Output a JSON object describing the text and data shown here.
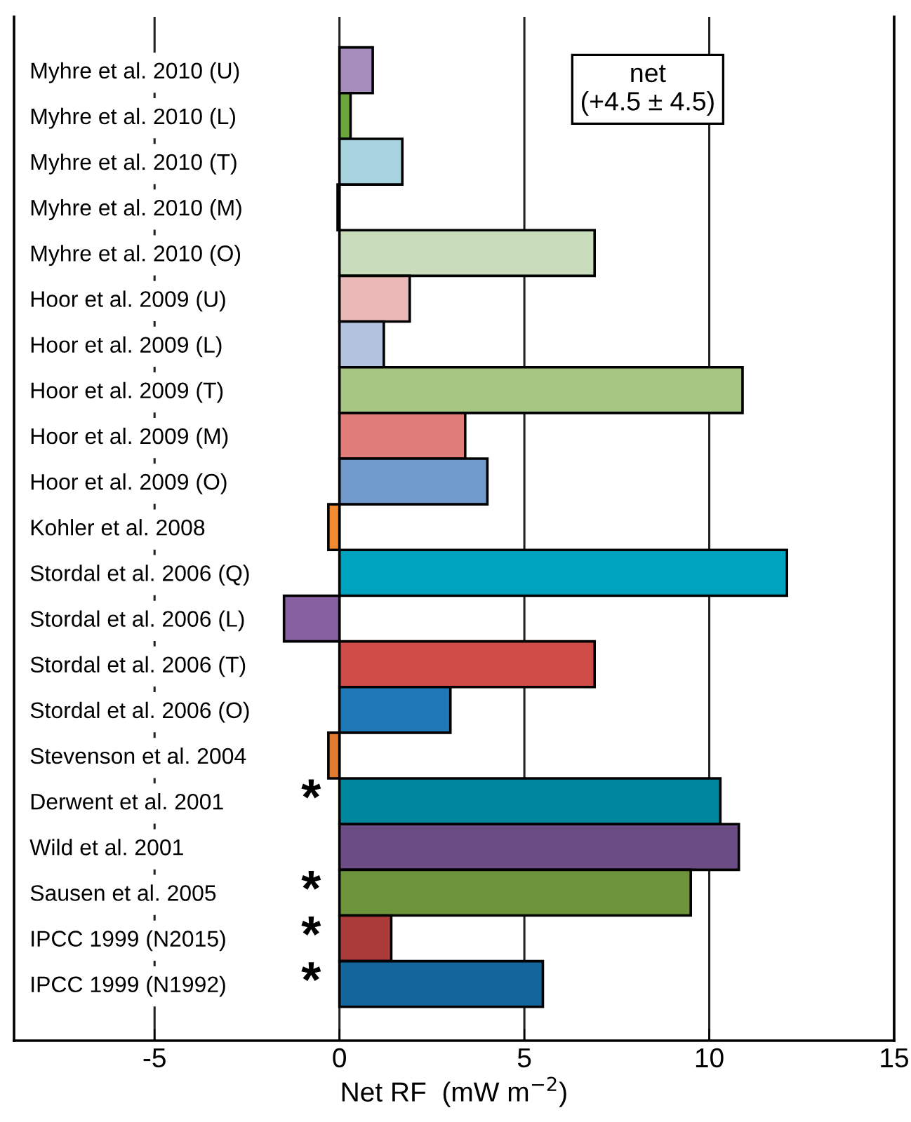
{
  "chart_data": {
    "type": "bar",
    "orientation": "horizontal",
    "categories": [
      "Myhre et al. 2010 (U)",
      "Myhre et al. 2010 (L)",
      "Myhre et al. 2010 (T)",
      "Myhre et al. 2010 (M)",
      "Myhre et al. 2010 (O)",
      "Hoor et al. 2009 (U)",
      "Hoor et al. 2009 (L)",
      "Hoor et al. 2009 (T)",
      "Hoor et al. 2009 (M)",
      "Hoor et al. 2009 (O)",
      "Kohler et al. 2008",
      "Stordal et al. 2006 (Q)",
      "Stordal et al. 2006 (L)",
      "Stordal et al. 2006 (T)",
      "Stordal et al. 2006 (O)",
      "Stevenson et al. 2004",
      "Derwent et al. 2001",
      "Wild et al. 2001",
      "Sausen et al. 2005",
      "IPCC 1999 (N2015)",
      "IPCC 1999 (N1992)"
    ],
    "values": [
      0.9,
      0.3,
      1.7,
      -0.05,
      6.9,
      1.9,
      1.2,
      10.9,
      3.4,
      4.0,
      -0.3,
      12.1,
      -1.5,
      6.9,
      3.0,
      -0.3,
      10.3,
      10.8,
      9.5,
      1.4,
      5.5
    ],
    "colors": [
      "#a58cbd",
      "#6aa63a",
      "#a8d4e0",
      "#cccccc",
      "#c9ddbd",
      "#eab8b6",
      "#b3c3df",
      "#a7c681",
      "#e07d7b",
      "#6f9acb",
      "#f28b32",
      "#00a3bf",
      "#8660a0",
      "#cf4b48",
      "#1f79b7",
      "#e07a2c",
      "#00879d",
      "#6c4c84",
      "#6d943a",
      "#ab3b3a",
      "#146599"
    ],
    "xlabel": "Net RF  (mW m$^{−2}$)",
    "xlim": [
      -8.8,
      15
    ],
    "xticks": [
      -5,
      0,
      5,
      10,
      15
    ],
    "grid": "x",
    "annotations": [
      "net\n(+4.5 ± 4.5)",
      "*",
      "*",
      "*",
      "*"
    ]
  }
}
